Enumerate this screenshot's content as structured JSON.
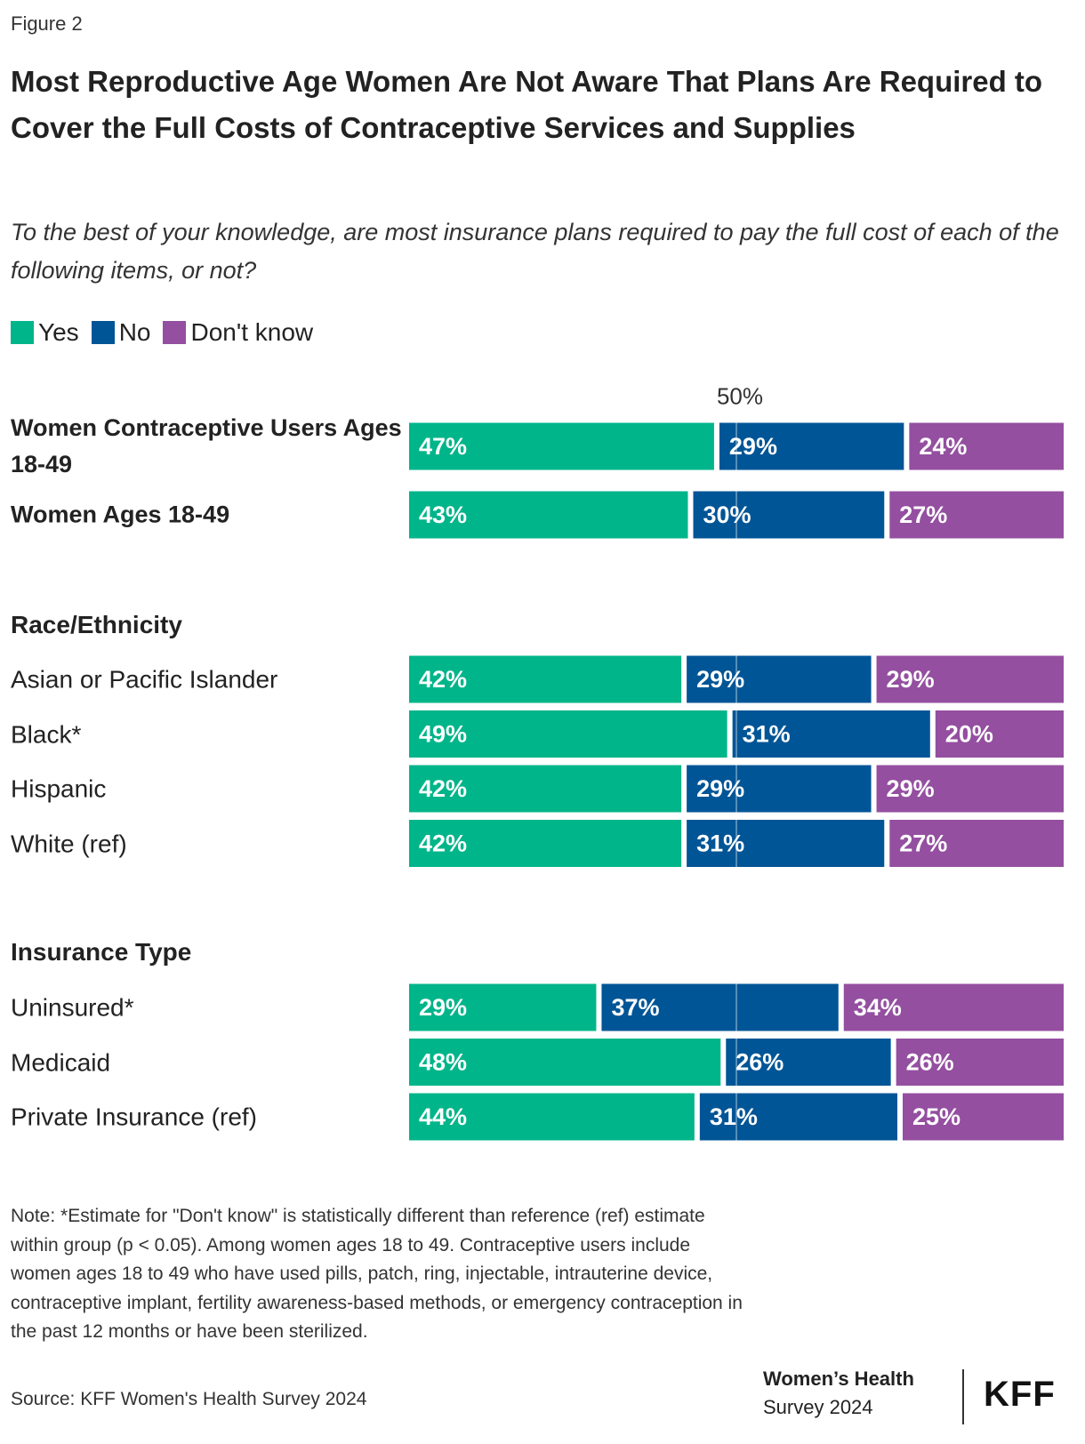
{
  "figure_label": "Figure 2",
  "chart_data": {
    "type": "stacked-bar",
    "title": "Most Reproductive Age Women Are Not Aware That Plans Are Required to Cover the Full Costs of Contraceptive Services and Supplies",
    "subtitle": "To the best of your knowledge, are most insurance plans required to pay the full cost of each of the following items, or not?",
    "series": [
      {
        "name": "Yes",
        "color": "#00b58a"
      },
      {
        "name": "No",
        "color": "#005596"
      },
      {
        "name": "Don't know",
        "color": "#944fa0"
      }
    ],
    "xlim": [
      0,
      100
    ],
    "reference_line": {
      "value": 50,
      "label": "50%"
    },
    "groups": [
      {
        "categories": [
          "Women Contraceptive Users Ages 18-49",
          "Women Ages 18-49"
        ],
        "values": [
          [
            47,
            29,
            24
          ],
          [
            43,
            30,
            27
          ]
        ],
        "value_labels": [
          [
            "47%",
            "29%",
            "24%"
          ],
          [
            "43%",
            "30%",
            "27%"
          ]
        ]
      },
      {
        "title": "Race/Ethnicity",
        "categories": [
          "Asian or Pacific Islander",
          "Black*",
          "Hispanic",
          "White (ref)"
        ],
        "values": [
          [
            42,
            29,
            29
          ],
          [
            49,
            31,
            20
          ],
          [
            42,
            29,
            29
          ],
          [
            42,
            31,
            27
          ]
        ],
        "value_labels": [
          [
            "42%",
            "29%",
            "29%"
          ],
          [
            "49%",
            "31%",
            "20%"
          ],
          [
            "42%",
            "29%",
            "29%"
          ],
          [
            "42%",
            "31%",
            "27%"
          ]
        ]
      },
      {
        "title": "Insurance Type",
        "categories": [
          "Uninsured*",
          "Medicaid",
          "Private Insurance (ref)"
        ],
        "values": [
          [
            29,
            37,
            34
          ],
          [
            48,
            26,
            26
          ],
          [
            44,
            31,
            25
          ]
        ],
        "value_labels": [
          [
            "29%",
            "37%",
            "34%"
          ],
          [
            "48%",
            "26%",
            "26%"
          ],
          [
            "44%",
            "31%",
            "25%"
          ]
        ]
      }
    ]
  },
  "note": "Note: *Estimate for \"Don't know\" is statistically different than reference (ref) estimate within group (p < 0.05). Among women ages 18 to 49. Contraceptive users include women ages 18 to 49 who have used pills, patch, ring, injectable, intrauterine device, contraceptive implant, fertility awareness-based methods, or emergency contraception in the past 12 months or have been sterilized.",
  "source": "Source: KFF Women's Health Survey 2024",
  "branding": {
    "survey_line1": "Women’s Health",
    "survey_line2": "Survey 2024",
    "logo": "KFF"
  }
}
